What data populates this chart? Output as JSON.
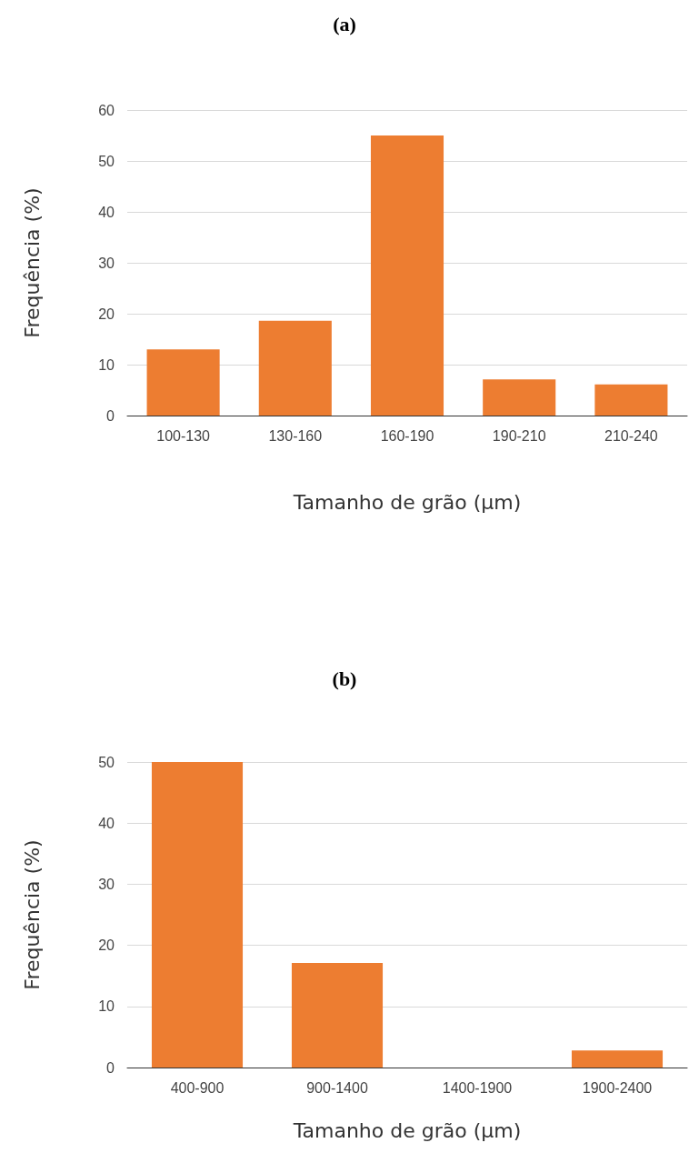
{
  "chart_data": [
    {
      "type": "bar",
      "title": "(a)",
      "xlabel": "Tamanho de grão (µm)",
      "ylabel": "Frequência (%)",
      "categories": [
        "100-130",
        "130-160",
        "160-190",
        "190-210",
        "210-240"
      ],
      "values": [
        13,
        18.6,
        55,
        7.1,
        6.1
      ],
      "color": "#ed7d31",
      "ylim": [
        0,
        60
      ],
      "yticks": [
        0,
        10,
        20,
        30,
        40,
        50,
        60
      ],
      "grid": "y"
    },
    {
      "type": "bar",
      "title": "(b)",
      "xlabel": "Tamanho de grão (µm)",
      "ylabel": "Frequência (%)",
      "categories": [
        "400-900",
        "900-1400",
        "1400-1900",
        "1900-2400"
      ],
      "values": [
        50,
        17.1,
        0,
        2.8
      ],
      "color": "#ed7d31",
      "ylim": [
        0,
        50
      ],
      "yticks": [
        0,
        10,
        20,
        30,
        40,
        50
      ],
      "grid": "y"
    }
  ]
}
